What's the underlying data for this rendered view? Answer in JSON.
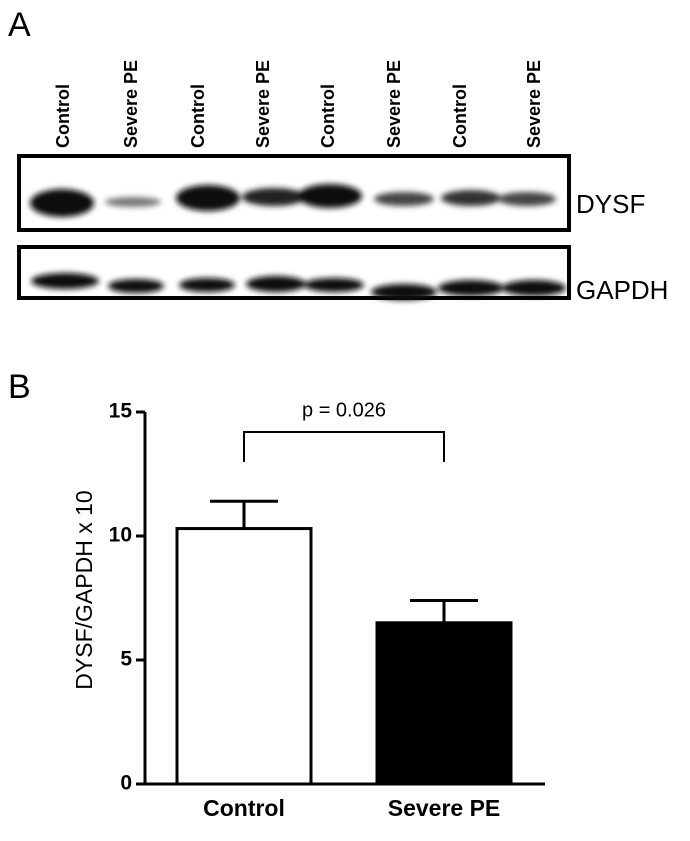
{
  "blot": {
    "panel_label": "A",
    "lanes": [
      "Control",
      "Severe PE",
      "Control",
      "Severe PE",
      "Control",
      "Severe PE",
      "Control",
      "Severe PE"
    ],
    "bands": [
      "DYSF",
      "GAPDH"
    ]
  },
  "chart_data": {
    "type": "bar",
    "panel_label": "B",
    "ylabel": "DYSF/GAPDH x 10",
    "annotation": "p = 0.026",
    "categories": [
      "Control",
      "Severe PE"
    ],
    "values": [
      10.3,
      6.5
    ],
    "errors": [
      1.1,
      0.9
    ],
    "colors": [
      "#ffffff",
      "#000000"
    ],
    "ylim": [
      0,
      15
    ],
    "yticks": [
      0,
      5,
      10,
      15
    ]
  }
}
